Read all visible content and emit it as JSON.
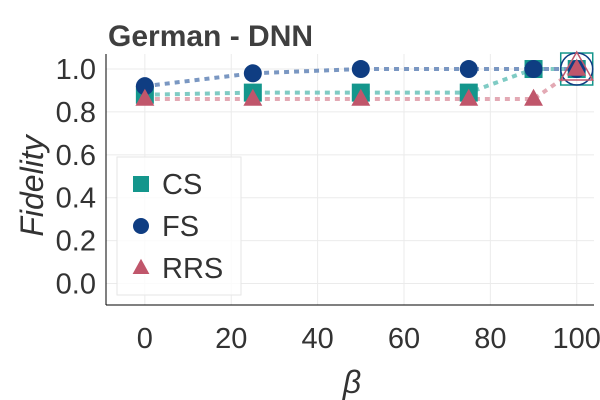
{
  "chart_data": {
    "type": "line",
    "title": "German - DNN",
    "xlabel": "β",
    "ylabel": "Fidelity",
    "xlim": [
      -9,
      104
    ],
    "ylim": [
      -0.1,
      1.07
    ],
    "xticks": [
      0,
      20,
      40,
      60,
      80,
      100
    ],
    "yticks": [
      0.0,
      0.2,
      0.4,
      0.6,
      0.8,
      1.0
    ],
    "xtick_labels": [
      "0",
      "20",
      "40",
      "60",
      "80",
      "100"
    ],
    "ytick_labels": [
      "0.0",
      "0.2",
      "0.4",
      "0.6",
      "0.8",
      "1.0"
    ],
    "grid": true,
    "legend_position": "center-left",
    "series": [
      {
        "name": "CS",
        "marker": "square",
        "color": "#14968c",
        "line_color": "#7fcbc4",
        "x": [
          0,
          25,
          50,
          75,
          90,
          100
        ],
        "y": [
          0.88,
          0.89,
          0.89,
          0.89,
          1.0,
          1.0
        ]
      },
      {
        "name": "FS",
        "marker": "circle",
        "color": "#0f3d82",
        "line_color": "#7a97c2",
        "x": [
          0,
          25,
          50,
          75,
          90,
          100
        ],
        "y": [
          0.92,
          0.98,
          1.0,
          1.0,
          1.0,
          1.0
        ]
      },
      {
        "name": "RRS",
        "marker": "triangle",
        "color": "#c0566b",
        "line_color": "#e3a9b4",
        "x": [
          0,
          25,
          50,
          75,
          90,
          100
        ],
        "y": [
          0.86,
          0.86,
          0.86,
          0.86,
          0.86,
          1.0
        ]
      }
    ]
  }
}
